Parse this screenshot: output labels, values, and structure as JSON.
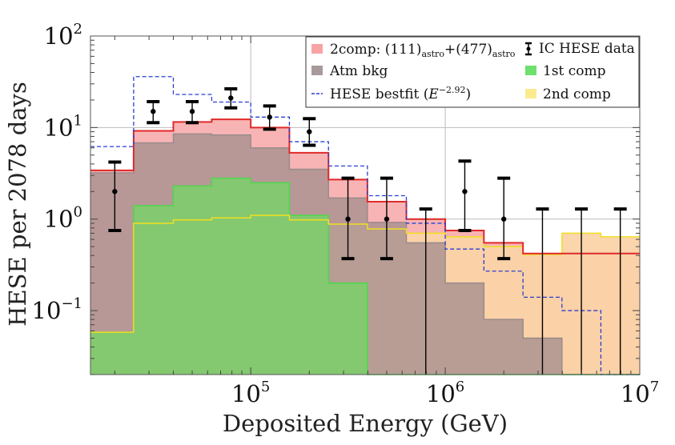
{
  "chart_data": {
    "type": "histogram",
    "xlabel": "Deposited Energy (GeV)",
    "ylabel": "HESE per 2078 days",
    "x_scale": "log",
    "y_scale": "log",
    "xlim": [
      15000,
      10000000
    ],
    "ylim": [
      0.02,
      100
    ],
    "x_ticks": [
      {
        "value": 100000,
        "base": "10",
        "exp": "5"
      },
      {
        "value": 1000000,
        "base": "10",
        "exp": "6"
      },
      {
        "value": 10000000,
        "base": "10",
        "exp": "7"
      }
    ],
    "y_ticks": [
      {
        "value": 100,
        "base": "10",
        "exp": "2"
      },
      {
        "value": 10,
        "base": "10",
        "exp": "1"
      },
      {
        "value": 1,
        "base": "10",
        "exp": "0"
      },
      {
        "value": 0.1,
        "base": "10",
        "exp": "−1"
      }
    ],
    "bin_edges": [
      15000,
      25000,
      40000,
      63000,
      100000,
      158000,
      251000,
      398000,
      631000,
      1000000,
      1580000,
      2510000,
      3980000,
      6310000,
      10000000
    ],
    "series": [
      {
        "name": "2comp",
        "color": "#e02a2a",
        "fill": "#f8b4b4",
        "values": [
          3.4,
          9.2,
          11.5,
          12.3,
          10.0,
          5.3,
          2.7,
          1.55,
          1.0,
          0.75,
          0.55,
          0.42,
          0.42,
          0.42
        ]
      },
      {
        "name": "Atm bkg",
        "color": "#9a8a8a",
        "fill": "#a89090",
        "values": [
          3.2,
          6.8,
          8.5,
          8.3,
          6.0,
          3.5,
          1.7,
          0.92,
          0.55,
          0.2,
          0.08,
          0.05,
          null,
          null
        ]
      },
      {
        "name": "1st comp",
        "color": "#4cd84c",
        "fill": "#7ad06a",
        "values": [
          0.058,
          1.4,
          2.3,
          2.8,
          2.5,
          1.1,
          0.2,
          0.02,
          null,
          null,
          null,
          null,
          null,
          null
        ]
      },
      {
        "name": "2nd comp",
        "color": "#f0e020",
        "fill": "#fbd3a6",
        "values": [
          0.058,
          0.9,
          0.98,
          1.03,
          1.1,
          0.98,
          0.88,
          0.78,
          0.7,
          0.64,
          0.5,
          0.41,
          0.7,
          0.64
        ]
      },
      {
        "name": "HESE bestfit",
        "color": "#2a3fd0",
        "values": [
          6.2,
          36,
          23,
          19,
          13,
          7.0,
          3.8,
          1.8,
          0.9,
          0.47,
          0.27,
          0.14,
          0.1,
          0.02
        ]
      }
    ],
    "data_points": [
      {
        "x": 20000,
        "y": 2,
        "y_low": 0.75,
        "y_high": 4.2
      },
      {
        "x": 31500,
        "y": 15,
        "y_low": 11.3,
        "y_high": 19.2
      },
      {
        "x": 50000,
        "y": 15,
        "y_low": 11.3,
        "y_high": 19.2
      },
      {
        "x": 79000,
        "y": 21,
        "y_low": 16.4,
        "y_high": 26.5
      },
      {
        "x": 125000,
        "y": 13,
        "y_low": 9.6,
        "y_high": 17.2
      },
      {
        "x": 200000,
        "y": 9,
        "y_low": 6.4,
        "y_high": 12.5
      },
      {
        "x": 316000,
        "y": 1,
        "y_low": 0.37,
        "y_high": 2.8
      },
      {
        "x": 500000,
        "y": 1,
        "y_low": 0.37,
        "y_high": 2.8
      },
      {
        "x": 794000,
        "y": 0,
        "y_low": 0,
        "y_high": 1.29
      },
      {
        "x": 1260000,
        "y": 2,
        "y_low": 0.75,
        "y_high": 4.3
      },
      {
        "x": 2000000,
        "y": 1,
        "y_low": 0.37,
        "y_high": 2.8
      },
      {
        "x": 3160000,
        "y": 0,
        "y_low": 0,
        "y_high": 1.29
      },
      {
        "x": 5010000,
        "y": 0,
        "y_low": 0,
        "y_high": 1.29
      },
      {
        "x": 7940000,
        "y": 0,
        "y_low": 0,
        "y_high": 1.29
      }
    ],
    "legend_position": "top-right",
    "legend": [
      {
        "label": "2comp: (111)astro+(477)astro",
        "main": "2comp: ",
        "part1": "(111)",
        "sub1": "astro",
        "plus": "+",
        "part2": "(477)",
        "sub2": "astro",
        "swatch": "#f8a4a4"
      },
      {
        "label": "Atm bkg",
        "swatch": "#a89a9a"
      },
      {
        "label": "HESE bestfit (E^−2.92)",
        "main": "HESE bestfit (",
        "var": "E",
        "sup": "−2.92",
        "end": ")",
        "swatch": "#2a3fd0"
      },
      {
        "label": "IC HESE data",
        "swatch": "#000000"
      },
      {
        "label": "1st comp",
        "swatch": "#6ee06e"
      },
      {
        "label": "2nd comp",
        "swatch": "#fbeb8e"
      }
    ]
  }
}
